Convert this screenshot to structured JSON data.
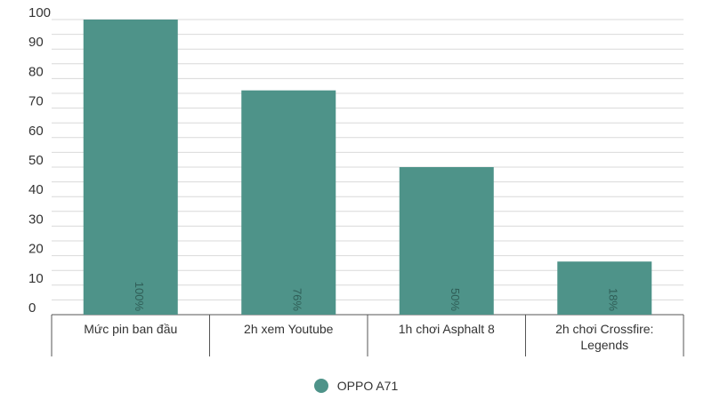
{
  "chart_data": {
    "type": "bar",
    "categories": [
      "Mức pin ban đầu",
      "2h xem Youtube",
      "1h chơi Asphalt 8",
      "2h chơi Crossfire: Legends"
    ],
    "category_label_lines": [
      [
        "Mức pin ban đầu"
      ],
      [
        "2h xem Youtube"
      ],
      [
        "1h chơi Asphalt 8"
      ],
      [
        "2h chơi Crossfire:",
        "Legends"
      ]
    ],
    "series": [
      {
        "name": "OPPO A71",
        "values": [
          100,
          76,
          50,
          18
        ],
        "data_labels": [
          "100%",
          "76%",
          "50%",
          "18%"
        ],
        "color": "#4e9389"
      }
    ],
    "ylim": [
      0,
      100
    ],
    "yticks": [
      0,
      10,
      20,
      30,
      40,
      50,
      60,
      70,
      80,
      90,
      100
    ],
    "title": "",
    "xlabel": "",
    "ylabel": "",
    "grid": true,
    "legend_position": "bottom",
    "colors": {
      "bar": "#4e9389",
      "grid": "#d9d9d9",
      "axis": "#555555"
    }
  },
  "legend": {
    "label": "OPPO A71"
  }
}
